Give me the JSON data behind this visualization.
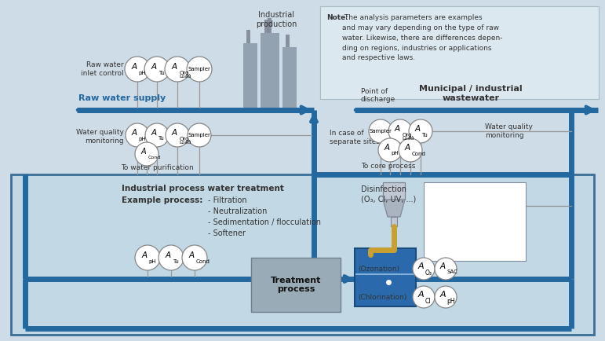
{
  "bg_color": "#cddce6",
  "note_bg": "#dce8f0",
  "inner_box_bg": "#c2d8e4",
  "inner_box_edge": "#3a6e96",
  "blue": "#2468a0",
  "dark_blue": "#1a4f80",
  "gray_box": "#9aabb8",
  "tank_blue": "#2a6aac",
  "tank_dark": "#1a4a7a",
  "yellow": "#c8a030",
  "white_box_edge": "#8090a0",
  "sensor_edge": "#888888",
  "text_dark": "#333333",
  "text_blue": "#2468a0",
  "factory_gray": "#8898a8",
  "note_text_bold": "Note:",
  "note_text_rest": " The analysis parameters are examples\nand may vary depending on the type of raw\nwater. Likewise, there are differences depen-\nding on regions, industries or applications\nand respective laws.",
  "label_raw_water_supply": "Raw water supply",
  "label_muni1": "Municipal / industrial",
  "label_muni2": "wastewater",
  "label_point_discharge": "Point of\ndischarge",
  "label_inlet": "Raw water\ninlet control",
  "label_wqm": "Water quality\nmonitoring",
  "label_separate": "In case of\nseparate sites",
  "label_purif": "To water purification",
  "label_core": "To core process",
  "label_indprod": "Industrial\nproduction",
  "label_disinfection_1": "Disinfection",
  "label_disinfection_2": "(O₃, Cl, UV, ...)",
  "label_treatment": "Treatment\nprocess",
  "label_ipt1": "Industrial process water treatment",
  "label_ipt2": "Example process:",
  "process_list": [
    "- Filtration",
    "- Neutralization",
    "- Sedimentation / flocculation",
    "- Softener"
  ],
  "label_ozonation": "(Ozonation)",
  "label_chlorination": "(Chlorination)"
}
